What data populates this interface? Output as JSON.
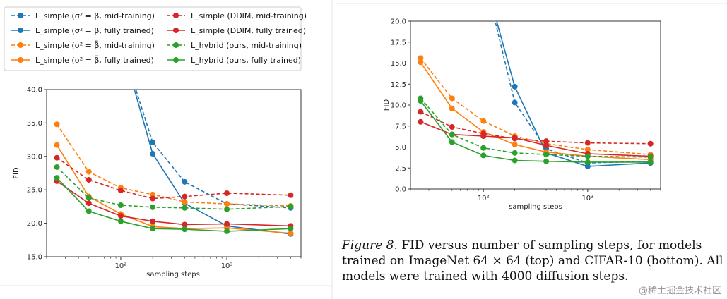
{
  "colors": {
    "blue": "#1f77b4",
    "orange": "#ff7f0e",
    "red": "#d62728",
    "green": "#2ca02c"
  },
  "legend": [
    {
      "text": "L_simple (σ² = β, mid-training)",
      "color": "blue",
      "dashed": true
    },
    {
      "text": "L_simple (σ² = β, fully trained)",
      "color": "blue",
      "dashed": false
    },
    {
      "text": "L_simple (σ² = β̃, mid-training)",
      "color": "orange",
      "dashed": true
    },
    {
      "text": "L_simple (σ² = β̃, fully trained)",
      "color": "orange",
      "dashed": false
    },
    {
      "text": "L_simple (DDIM, mid-training)",
      "color": "red",
      "dashed": true
    },
    {
      "text": "L_simple (DDIM, fully trained)",
      "color": "red",
      "dashed": false
    },
    {
      "text": "L_hybrid (ours, mid-training)",
      "color": "green",
      "dashed": true
    },
    {
      "text": "L_hybrid (ours, fully trained)",
      "color": "green",
      "dashed": false
    }
  ],
  "chart_data": [
    {
      "type": "line",
      "dataset": "ImageNet 64x64",
      "xscale": "log",
      "xlabel": "sampling steps",
      "ylabel": "FID",
      "xlim": [
        20,
        5000
      ],
      "ylim": [
        15,
        40
      ],
      "x": [
        25,
        50,
        100,
        200,
        400,
        1000,
        4000
      ],
      "yticks": [
        "15.0",
        "20.0",
        "25.0",
        "30.0",
        "35.0",
        "40.0"
      ],
      "xticks": [
        {
          "v": 100,
          "label": "10²"
        },
        {
          "v": 1000,
          "label": "10³"
        }
      ],
      "series": [
        {
          "name": "L_simple (σ² = β, mid-training)",
          "color": "blue",
          "dashed": true,
          "values": [
            null,
            null,
            null,
            32.1,
            26.2,
            22.9,
            22.3
          ]
        },
        {
          "name": "L_simple (σ² = β, fully trained)",
          "color": "blue",
          "dashed": false,
          "values": [
            null,
            null,
            null,
            30.4,
            23.0,
            19.6,
            18.4
          ]
        },
        {
          "name": "L_simple (σ² = β̃, mid-training)",
          "color": "orange",
          "dashed": true,
          "values": [
            34.8,
            27.7,
            25.3,
            24.3,
            23.2,
            22.9,
            22.6
          ]
        },
        {
          "name": "L_simple (σ² = β̃, fully trained)",
          "color": "orange",
          "dashed": false,
          "values": [
            31.7,
            24.0,
            21.4,
            19.5,
            19.2,
            19.3,
            18.5
          ]
        },
        {
          "name": "L_simple (DDIM, mid-training)",
          "color": "red",
          "dashed": true,
          "values": [
            29.8,
            26.5,
            24.9,
            23.7,
            24.0,
            24.5,
            24.2
          ]
        },
        {
          "name": "L_simple (DDIM, fully trained)",
          "color": "red",
          "dashed": false,
          "values": [
            26.3,
            23.0,
            21.1,
            20.3,
            19.8,
            19.9,
            19.6
          ]
        },
        {
          "name": "L_hybrid (ours, mid-training)",
          "color": "green",
          "dashed": true,
          "values": [
            28.4,
            23.8,
            22.7,
            22.4,
            22.3,
            22.1,
            22.5
          ]
        },
        {
          "name": "L_hybrid (ours, fully trained)",
          "color": "green",
          "dashed": false,
          "values": [
            26.8,
            21.8,
            20.3,
            19.2,
            19.1,
            18.8,
            19.2
          ]
        }
      ]
    },
    {
      "type": "line",
      "dataset": "CIFAR-10",
      "xscale": "log",
      "xlabel": "sampling steps",
      "ylabel": "FID",
      "xlim": [
        20,
        5000
      ],
      "ylim": [
        0,
        20
      ],
      "x": [
        25,
        50,
        100,
        200,
        400,
        1000,
        4000
      ],
      "yticks": [
        "0.0",
        "2.5",
        "5.0",
        "7.5",
        "10.0",
        "12.5",
        "15.0",
        "17.5",
        "20.0"
      ],
      "xticks": [
        {
          "v": 100,
          "label": "10²"
        },
        {
          "v": 1000,
          "label": "10³"
        }
      ],
      "series": [
        {
          "name": "L_simple (σ² = β, mid-training)",
          "color": "blue",
          "dashed": true,
          "values": [
            null,
            null,
            null,
            10.3,
            4.8,
            3.1,
            3.3
          ]
        },
        {
          "name": "L_simple (σ² = β, fully trained)",
          "color": "blue",
          "dashed": false,
          "values": [
            null,
            null,
            null,
            12.2,
            4.3,
            2.7,
            3.1
          ]
        },
        {
          "name": "L_simple (σ² = β̃, mid-training)",
          "color": "orange",
          "dashed": true,
          "values": [
            15.6,
            10.8,
            8.1,
            6.3,
            5.4,
            4.7,
            4.1
          ]
        },
        {
          "name": "L_simple (σ² = β̃, fully trained)",
          "color": "orange",
          "dashed": false,
          "values": [
            15.1,
            9.6,
            6.8,
            5.3,
            4.4,
            3.9,
            3.5
          ]
        },
        {
          "name": "L_simple (DDIM, mid-training)",
          "color": "red",
          "dashed": true,
          "values": [
            9.2,
            7.4,
            6.6,
            6.0,
            5.7,
            5.5,
            5.4
          ]
        },
        {
          "name": "L_simple (DDIM, fully trained)",
          "color": "red",
          "dashed": false,
          "values": [
            8.0,
            6.5,
            6.3,
            6.1,
            5.2,
            4.2,
            3.9
          ]
        },
        {
          "name": "L_hybrid (ours, mid-training)",
          "color": "green",
          "dashed": true,
          "values": [
            10.8,
            6.5,
            4.9,
            4.3,
            4.1,
            3.9,
            3.8
          ]
        },
        {
          "name": "L_hybrid (ours, fully trained)",
          "color": "green",
          "dashed": false,
          "values": [
            10.5,
            5.6,
            4.0,
            3.4,
            3.3,
            3.2,
            3.2
          ]
        }
      ]
    }
  ],
  "caption": {
    "figure": "Figure 8.",
    "text": "FID versus number of sampling steps, for models trained on ImageNet 64 × 64 (top) and CIFAR-10 (bottom). All models were trained with 4000 diffusion steps."
  },
  "watermark": "@稀土掘金技术社区"
}
